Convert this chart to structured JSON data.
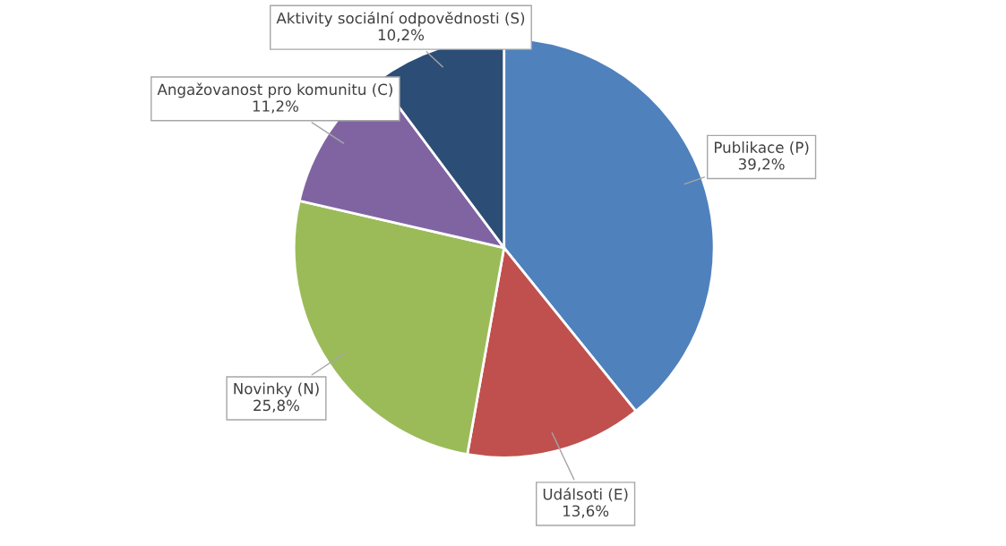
{
  "chart_data": {
    "type": "pie",
    "categories": [
      "Publikace (P)",
      "Událsoti (E)",
      "Novinky (N)",
      "Angažovanost pro komunitu (C)",
      "Aktivity sociální odpovědnosti (S)"
    ],
    "values": [
      39.2,
      13.6,
      25.8,
      11.2,
      10.2
    ],
    "value_labels": [
      "39,2%",
      "13,6%",
      "25,8%",
      "11,2%",
      "10,2%"
    ],
    "colors": [
      "#4f81bd",
      "#c0504d",
      "#9bbb59",
      "#8064a2",
      "#2c4d75"
    ],
    "legend": false
  }
}
